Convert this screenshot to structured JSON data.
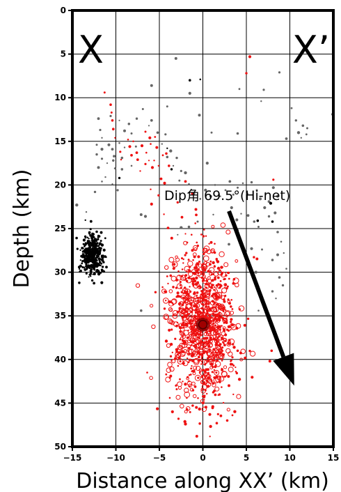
{
  "chart_data": {
    "type": "scatter",
    "xlabel": "Distance along XX’ (km)",
    "ylabel": "Depth (km)",
    "xlim": [
      -15,
      15
    ],
    "ylim": [
      0,
      50
    ],
    "y_inverted": true,
    "grid": true,
    "x_ticks": [
      -15,
      -10,
      -5,
      0,
      5,
      10,
      15
    ],
    "x_tick_labels": [
      "−15",
      "−10",
      "−5",
      "0",
      "5",
      "10",
      "15"
    ],
    "y_ticks": [
      0,
      5,
      10,
      15,
      20,
      25,
      30,
      35,
      40,
      45,
      50
    ],
    "y_tick_labels": [
      "0",
      "5",
      "10",
      "15",
      "20",
      "25",
      "30",
      "35",
      "40",
      "45",
      "50"
    ],
    "corner_labels": {
      "left": "X",
      "right": "X’"
    },
    "annotation": {
      "text": "Dip角 69.5°(Hi-net)",
      "arrow_from": [
        3.0,
        23.0
      ],
      "arrow_to": [
        10.5,
        43.0
      ]
    },
    "colors": {
      "red": "#ee1111",
      "gray": "#666666",
      "black": "#000000",
      "mainshock": "#8b0000"
    },
    "series": [
      {
        "color": "#ee1111",
        "points": [
          [
            -11.3,
            9.4
          ],
          [
            -10.6,
            10.8
          ],
          [
            -10.5,
            11.7
          ],
          [
            -10.4,
            12.6
          ],
          [
            -10.3,
            13.6
          ],
          [
            -10.1,
            14.6
          ],
          [
            -9.5,
            16.2
          ],
          [
            -9.4,
            17.1
          ],
          [
            -8.6,
            14.8
          ],
          [
            -8.4,
            15.6
          ],
          [
            -8.2,
            16.6
          ],
          [
            -8.0,
            15.0
          ],
          [
            -7.6,
            16.3
          ],
          [
            -7.5,
            17.1
          ],
          [
            -7.2,
            18.4
          ],
          [
            -7.0,
            15.5
          ],
          [
            -6.6,
            17.6
          ],
          [
            -6.5,
            16.3
          ],
          [
            -6.2,
            17.2
          ],
          [
            -6.0,
            15.3
          ],
          [
            -5.8,
            18.0
          ],
          [
            -5.6,
            17.2
          ],
          [
            -5.3,
            15.7
          ],
          [
            -5.1,
            17.8
          ],
          [
            -4.8,
            19.3
          ],
          [
            -4.6,
            16.6
          ],
          [
            -4.4,
            19.8
          ],
          [
            -4.2,
            16.4
          ],
          [
            -3.9,
            17.8
          ],
          [
            -6.6,
            13.9
          ],
          [
            -6.1,
            14.6
          ],
          [
            -5.5,
            14.5
          ],
          [
            -6.0,
            20.5
          ],
          [
            -5.9,
            22.2
          ],
          [
            -5.1,
            21.2
          ],
          [
            -2.9,
            22.0
          ],
          [
            -2.4,
            23.7
          ],
          [
            -2.0,
            19.6
          ],
          [
            -1.2,
            21.0
          ],
          [
            -0.8,
            22.8
          ],
          [
            5.0,
            7.2
          ],
          [
            5.4,
            5.3
          ],
          [
            8.1,
            19.4
          ],
          [
            7.9,
            39.0
          ],
          [
            7.7,
            40.2
          ],
          [
            -2.0,
            25.6
          ],
          [
            -1.3,
            25.7
          ],
          [
            -1.8,
            26.6
          ],
          [
            -1.2,
            27.5
          ],
          [
            -1.9,
            27.8
          ],
          [
            -2.4,
            28.4
          ],
          [
            -1.5,
            29.4
          ],
          [
            -2.8,
            29.9
          ],
          [
            -3.3,
            29.1
          ],
          [
            -3.7,
            30.4
          ],
          [
            -4.0,
            31.3
          ],
          [
            -3.4,
            31.7
          ],
          [
            -4.4,
            32.2
          ],
          [
            -3.0,
            30.9
          ],
          [
            -0.9,
            29.5
          ],
          [
            -0.4,
            28.8
          ],
          [
            -0.7,
            26.6
          ],
          [
            0.1,
            27.9
          ],
          [
            -6.4,
            41.5
          ],
          [
            -4.2,
            37.9
          ],
          [
            -3.5,
            39.2
          ],
          [
            -3.7,
            41.9
          ],
          [
            -3.1,
            43.0
          ],
          [
            -3.8,
            44.4
          ],
          [
            -3.5,
            46.0
          ],
          [
            -2.8,
            46.8
          ],
          [
            -2.0,
            47.4
          ],
          [
            -0.7,
            48.8
          ],
          [
            -1.6,
            42.5
          ],
          [
            0.8,
            46.3
          ],
          [
            1.6,
            47.3
          ],
          [
            2.8,
            47.0
          ],
          [
            3.4,
            46.4
          ],
          [
            3.5,
            44.0
          ],
          [
            3.0,
            43.0
          ],
          [
            3.8,
            41.4
          ],
          [
            3.6,
            38.6
          ],
          [
            3.2,
            40.2
          ],
          [
            2.8,
            36.6
          ],
          [
            2.3,
            38.0
          ],
          [
            4.0,
            39.0
          ],
          [
            1.0,
            40.5
          ],
          [
            2.0,
            42.0
          ]
        ]
      },
      {
        "color": "#ee1111",
        "cluster": {
          "center": [
            0.0,
            36.0
          ],
          "x_sd": 1.9,
          "y_sd": 4.4,
          "count": 1050
        }
      },
      {
        "color": "#666666",
        "points": [
          [
            -12.0,
            12.4
          ],
          [
            -11.8,
            13.7
          ],
          [
            -11.6,
            14.6
          ],
          [
            -12.2,
            15.4
          ],
          [
            -11.6,
            15.9
          ],
          [
            -12.2,
            16.5
          ],
          [
            -11.6,
            17.0
          ],
          [
            -11.0,
            17.5
          ],
          [
            -10.8,
            15.4
          ],
          [
            -10.4,
            15.9
          ],
          [
            -10.2,
            16.7
          ],
          [
            -9.6,
            15.2
          ],
          [
            -9.0,
            15.7
          ],
          [
            -9.3,
            16.9
          ],
          [
            -10.1,
            18.1
          ],
          [
            -11.2,
            19.1
          ],
          [
            -11.6,
            19.6
          ],
          [
            -12.0,
            18.0
          ],
          [
            -10.4,
            19.9
          ],
          [
            -9.8,
            20.6
          ],
          [
            -10.6,
            12.1
          ],
          [
            -9.6,
            12.6
          ],
          [
            -9.0,
            13.8
          ],
          [
            -8.5,
            13.0
          ],
          [
            -8.2,
            14.1
          ],
          [
            -7.7,
            15.6
          ],
          [
            -7.6,
            12.4
          ],
          [
            -6.2,
            13.2
          ],
          [
            -5.9,
            12.6
          ],
          [
            -5.2,
            14.0
          ],
          [
            -4.7,
            15.3
          ],
          [
            -4.3,
            14.2
          ],
          [
            -4.1,
            16.8
          ],
          [
            -3.7,
            16.1
          ],
          [
            -3.4,
            17.8
          ],
          [
            -3.0,
            16.9
          ],
          [
            -2.5,
            18.4
          ],
          [
            -2.7,
            19.5
          ],
          [
            -2.0,
            18.6
          ],
          [
            -1.6,
            19.9
          ],
          [
            -1.0,
            21.0
          ],
          [
            -0.3,
            21.6
          ],
          [
            0.3,
            20.6
          ],
          [
            0.9,
            21.3
          ],
          [
            1.4,
            20.0
          ],
          [
            2.0,
            21.3
          ],
          [
            2.6,
            20.6
          ],
          [
            3.1,
            19.6
          ],
          [
            3.5,
            21.1
          ],
          [
            4.0,
            20.3
          ],
          [
            4.6,
            19.8
          ],
          [
            5.1,
            21.0
          ],
          [
            5.6,
            19.7
          ],
          [
            6.2,
            20.6
          ],
          [
            6.6,
            21.6
          ],
          [
            7.2,
            20.9
          ],
          [
            7.6,
            21.9
          ],
          [
            8.1,
            20.3
          ],
          [
            8.6,
            21.3
          ],
          [
            3.3,
            22.6
          ],
          [
            3.9,
            24.0
          ],
          [
            4.4,
            23.3
          ],
          [
            5.2,
            23.5
          ],
          [
            5.9,
            24.2
          ],
          [
            6.4,
            24.8
          ],
          [
            7.1,
            22.6
          ],
          [
            7.6,
            23.6
          ],
          [
            8.3,
            23.2
          ],
          [
            8.6,
            25.4
          ],
          [
            9.0,
            26.5
          ],
          [
            9.3,
            27.8
          ],
          [
            8.6,
            28.0
          ],
          [
            8.0,
            28.6
          ],
          [
            9.6,
            29.6
          ],
          [
            8.8,
            30.6
          ],
          [
            9.2,
            31.5
          ],
          [
            8.0,
            32.2
          ],
          [
            8.4,
            33.0
          ],
          [
            6.1,
            30.0
          ],
          [
            6.8,
            27.4
          ],
          [
            5.6,
            27.3
          ],
          [
            4.0,
            25.2
          ],
          [
            3.0,
            26.8
          ],
          [
            1.2,
            23.4
          ],
          [
            -0.6,
            24.2
          ],
          [
            -1.6,
            24.8
          ],
          [
            10.2,
            11.2
          ],
          [
            10.7,
            12.6
          ],
          [
            11.0,
            14.0
          ],
          [
            11.5,
            13.2
          ],
          [
            11.9,
            14.2
          ],
          [
            12.0,
            13.5
          ],
          [
            11.3,
            14.6
          ],
          [
            9.6,
            14.7
          ],
          [
            14.9,
            11.9
          ],
          [
            4.2,
            9.0
          ],
          [
            -3.1,
            5.5
          ],
          [
            -4.1,
            11.0
          ],
          [
            -6.9,
            11.3
          ],
          [
            -5.9,
            8.6
          ],
          [
            -1.5,
            9.5
          ],
          [
            -0.4,
            12.0
          ],
          [
            1.0,
            14.0
          ],
          [
            0.5,
            17.5
          ],
          [
            4.0,
            14.1
          ],
          [
            6.7,
            10.4
          ],
          [
            7.0,
            9.1
          ],
          [
            8.8,
            7.1
          ],
          [
            -12.4,
            20.8
          ],
          [
            -14.5,
            22.3
          ],
          [
            -13.4,
            23.1
          ],
          [
            -7.1,
            23.4
          ],
          [
            -6.6,
            23.6
          ],
          [
            -2.9,
            25.7
          ],
          [
            -2.5,
            24.9
          ],
          [
            -7.1,
            34.4
          ],
          [
            6.4,
            34.4
          ],
          [
            -10.3,
            17.2
          ],
          [
            -9.3,
            18.2
          ],
          [
            -8.2,
            17.8
          ]
        ]
      },
      {
        "color": "#000000",
        "cluster": {
          "center": [
            -12.7,
            28.0
          ],
          "x_sd": 0.7,
          "y_sd": 1.25,
          "count": 380
        }
      },
      {
        "color": "#000000",
        "points": [
          [
            -1.5,
            8.0
          ],
          [
            -0.3,
            7.9
          ],
          [
            -4.1,
            15.8
          ],
          [
            -3.6,
            18.2
          ],
          [
            6.3,
            24.1
          ],
          [
            8.0,
            24.2
          ],
          [
            7.8,
            22.1
          ],
          [
            -9.6,
            19.2
          ]
        ]
      }
    ],
    "mainshock": {
      "x": 0.0,
      "y": 36.0
    }
  }
}
